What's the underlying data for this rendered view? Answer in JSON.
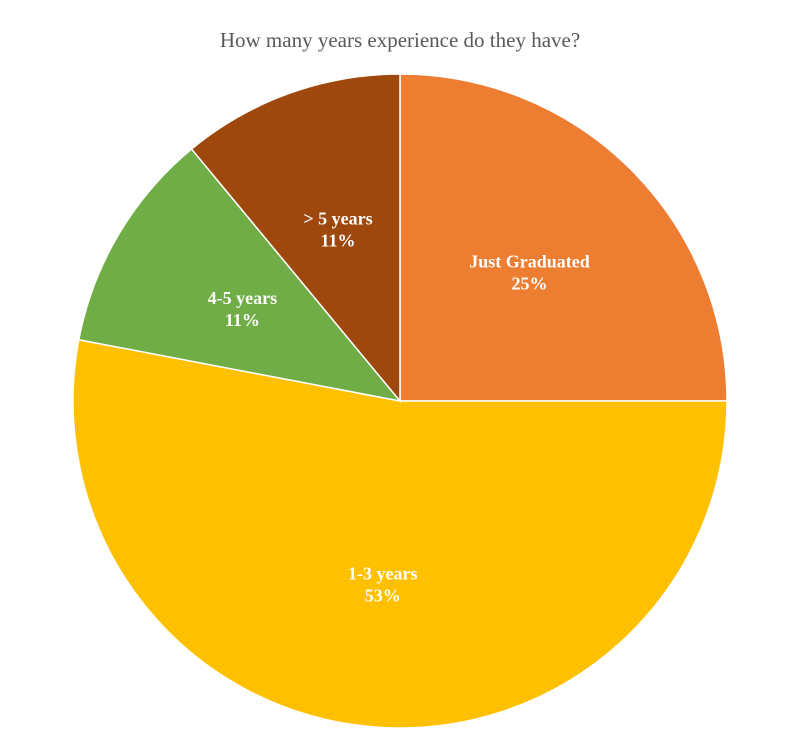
{
  "chart_data": {
    "type": "pie",
    "title": "How many years experience do they have?",
    "start_angle_deg": 0,
    "direction": "clockwise",
    "slices": [
      {
        "label": "Just Graduated",
        "value": 25,
        "percent_label": "25%",
        "color": "#ED7D31"
      },
      {
        "label": "1-3 years",
        "value": 53,
        "percent_label": "53%",
        "color": "#FFC000"
      },
      {
        "label": "4-5 years",
        "value": 11,
        "percent_label": "11%",
        "color": "#70AD47"
      },
      {
        "label": "> 5 years",
        "value": 11,
        "percent_label": "11%",
        "color": "#9E480E"
      }
    ],
    "legend": "none"
  }
}
